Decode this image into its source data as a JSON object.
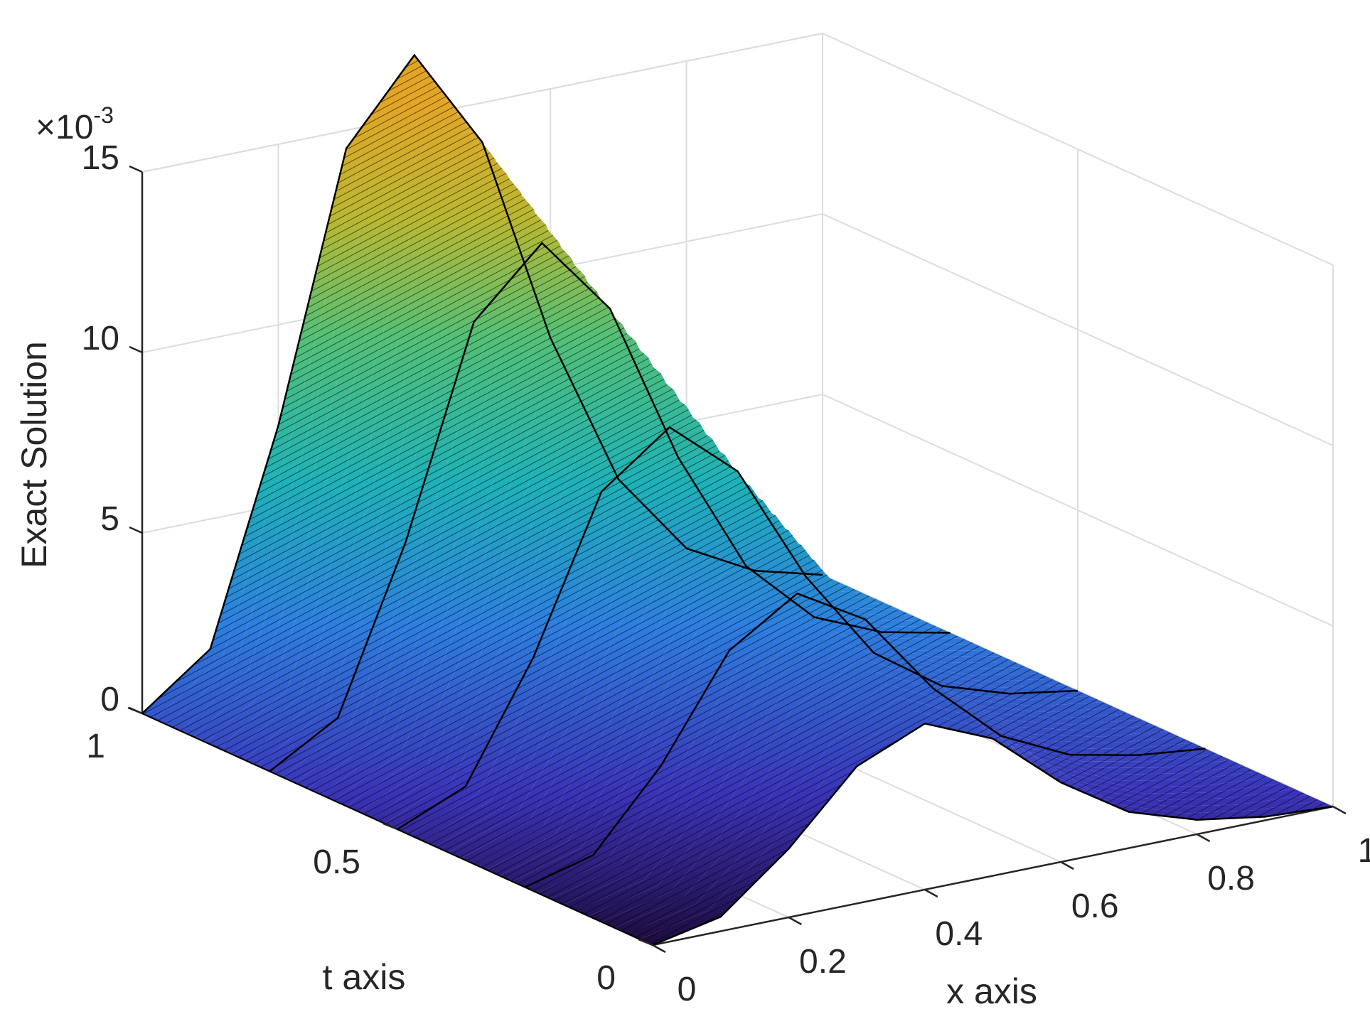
{
  "chart_data": {
    "type": "surface",
    "title": "",
    "xlabel": "x axis",
    "ylabel": "t axis",
    "zlabel": "Exact Solution",
    "z_exponent_label": "×10",
    "z_exponent_power": "-3",
    "xlim": [
      0,
      1
    ],
    "ylim": [
      0,
      1
    ],
    "zlim": [
      0,
      15
    ],
    "x_ticks": [
      0,
      0.2,
      0.4,
      0.6,
      0.8,
      1
    ],
    "x_tick_labels": [
      "0",
      "0.2",
      "0.4",
      "0.6",
      "0.8",
      "1"
    ],
    "y_ticks": [
      0,
      0.5,
      1
    ],
    "y_tick_labels": [
      "0",
      "0.5",
      "1"
    ],
    "z_ticks": [
      0,
      5,
      10,
      15
    ],
    "z_tick_labels": [
      "0",
      "5",
      "10",
      "15"
    ],
    "grid": true,
    "colormap": "parula",
    "colormap_stops": [
      "#2a0e5a",
      "#3a3fcf",
      "#2f86e8",
      "#1fb3b3",
      "#6cc35a",
      "#c9b22a",
      "#e0a020"
    ],
    "surface": {
      "description_of_data": "z values in units of 1e-3 along x for t = 0, 0.25, 0.5, 0.75, 1",
      "x": [
        0,
        0.1,
        0.2,
        0.3,
        0.4,
        0.5,
        0.6,
        0.7,
        0.8,
        0.9,
        1
      ],
      "t": [
        0,
        0.25,
        0.5,
        0.75,
        1
      ],
      "z": [
        [
          0.0,
          0.4,
          1.9,
          3.8,
          4.6,
          3.8,
          2.2,
          1.0,
          0.4,
          0.1,
          0.0
        ],
        [
          0.0,
          0.5,
          2.6,
          5.4,
          6.6,
          5.5,
          3.2,
          1.5,
          0.6,
          0.2,
          0.0
        ],
        [
          0.0,
          0.8,
          4.0,
          8.2,
          9.6,
          8.0,
          4.7,
          2.2,
          0.9,
          0.3,
          0.0
        ],
        [
          0.0,
          1.1,
          5.6,
          11.3,
          13.1,
          10.9,
          6.4,
          3.0,
          1.2,
          0.4,
          0.0
        ],
        [
          0.0,
          1.4,
          7.2,
          14.5,
          16.7,
          13.9,
          8.1,
          3.8,
          1.5,
          0.5,
          0.0
        ]
      ]
    }
  }
}
